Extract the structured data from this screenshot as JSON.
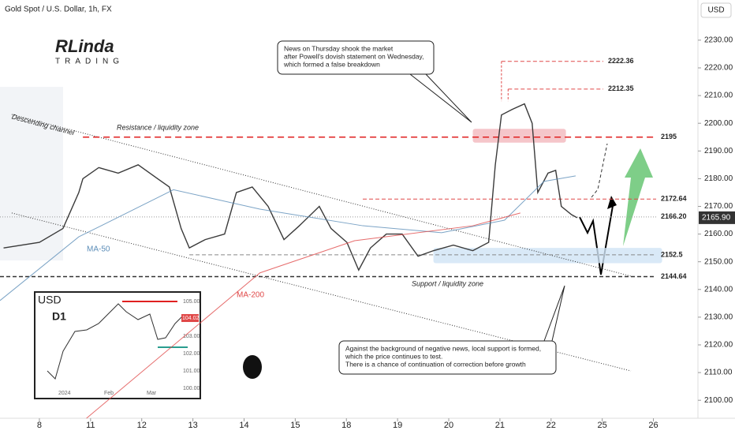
{
  "header": {
    "title": "Gold Spot / U.S. Dollar, 1h, FX",
    "currency": "USD"
  },
  "logo": {
    "name": "RLinda",
    "sub": "TRADING"
  },
  "chart_data": {
    "type": "line",
    "xticks": [
      {
        "value": 0,
        "label": "8"
      },
      {
        "value": 1,
        "label": "11"
      },
      {
        "value": 2,
        "label": "12"
      },
      {
        "value": 3,
        "label": "13"
      },
      {
        "value": 4,
        "label": "14"
      },
      {
        "value": 5,
        "label": "15"
      },
      {
        "value": 6,
        "label": "18"
      },
      {
        "value": 7,
        "label": "19"
      },
      {
        "value": 8,
        "label": "20"
      },
      {
        "value": 9,
        "label": "21"
      },
      {
        "value": 10,
        "label": "22"
      },
      {
        "value": 11,
        "label": "25"
      },
      {
        "value": 12,
        "label": "26"
      }
    ],
    "xlim": [
      -0.77,
      12.87
    ],
    "ylim": [
      2093.5,
      2244.5
    ],
    "yticks": [
      {
        "value": 2100,
        "label": "2100.00"
      },
      {
        "value": 2110,
        "label": "2110.00"
      },
      {
        "value": 2120,
        "label": "2120.00"
      },
      {
        "value": 2130,
        "label": "2130.00"
      },
      {
        "value": 2140,
        "label": "2140.00"
      },
      {
        "value": 2150,
        "label": "2150.00"
      },
      {
        "value": 2160,
        "label": "2160.00"
      },
      {
        "value": 2170,
        "label": "2170.00"
      },
      {
        "value": 2180,
        "label": "2180.00"
      },
      {
        "value": 2190,
        "label": "2190.00"
      },
      {
        "value": 2200,
        "label": "2200.00"
      },
      {
        "value": 2210,
        "label": "2210.00"
      },
      {
        "value": 2220,
        "label": "2220.00"
      },
      {
        "value": 2230,
        "label": "2230.00"
      }
    ],
    "series": [
      {
        "color": "#3a3a3a",
        "x": [
          -0.7,
          0,
          0.46,
          0.77,
          0.85,
          1.16,
          1.54,
          1.93,
          2.31,
          2.54,
          2.77,
          2.93,
          3.24,
          3.62,
          3.85,
          4.16,
          4.47,
          4.78,
          5.08,
          5.47,
          5.7,
          6.01,
          6.24,
          6.47,
          6.78,
          7.09,
          7.4,
          7.7,
          8.09,
          8.47,
          8.78,
          8.91,
          9.03,
          9.24,
          9.48,
          9.63,
          9.74,
          9.94,
          10.09,
          10.2,
          10.4,
          10.51
        ],
        "values": [
          2155,
          2157,
          2162,
          2175,
          2180,
          2184,
          2182,
          2185,
          2180,
          2177,
          2162,
          2155,
          2158,
          2160,
          2175,
          2177,
          2170,
          2158,
          2163,
          2170,
          2162,
          2157,
          2147,
          2155,
          2160,
          2160,
          2152,
          2154,
          2156,
          2154,
          2157,
          2185,
          2203,
          2205,
          2207,
          2200,
          2175,
          2182,
          2183,
          2170,
          2167,
          2165.9
        ]
      },
      {
        "name": "MA-50",
        "color": "#5b8db8",
        "x": [
          -0.77,
          0.77,
          2.62,
          4.31,
          6.32,
          7.86,
          9.09,
          9.86,
          10.48
        ],
        "values": [
          2136,
          2159,
          2176,
          2169,
          2163,
          2160.5,
          2165,
          2179,
          2181
        ]
      },
      {
        "name": "MA-200",
        "color": "#e04848",
        "x": [
          0.92,
          4.31,
          6.16,
          8.47,
          9.4
        ],
        "values": [
          2093.5,
          2146,
          2157.6,
          2163,
          2167.6
        ]
      }
    ],
    "levels": [
      {
        "value": 2222.36,
        "label": "2222.36",
        "from": 9.03,
        "color": "#e04848"
      },
      {
        "value": 2212.35,
        "label": "2212.35",
        "from": 9.16,
        "color": "#e04848"
      },
      {
        "value": 2195,
        "label": "2195",
        "from": 0.85,
        "color": "#e02020"
      },
      {
        "value": 2172.64,
        "label": "2172.64",
        "from": 6.32,
        "color": "#e04848"
      },
      {
        "value": 2166.2,
        "label": "2166.20",
        "from": -0.77,
        "color": "#999999"
      },
      {
        "value": 2152.5,
        "label": "2152.5",
        "from": 2.93,
        "color": "#888888"
      },
      {
        "value": 2144.64,
        "label": "2144.64",
        "from": -0.77,
        "color": "#333333"
      }
    ],
    "zones": [
      {
        "label": "Resistance / liquidity zone",
        "x": [
          8.47,
          10.29
        ],
        "y": [
          2193,
          2198
        ],
        "color": "#f2b8bd"
      },
      {
        "label": "Support / liquidity zone",
        "x": [
          7.7,
          12.17
        ],
        "y": [
          2149.5,
          2155
        ],
        "color": "#cfe3f5"
      }
    ],
    "channel": {
      "label": "Descending channel",
      "upper": {
        "x": [
          -0.54,
          11.56
        ],
        "y": [
          2203.2,
          2144.8
        ]
      },
      "lower": {
        "x": [
          -0.54,
          11.56
        ],
        "y": [
          2167.6,
          2110.6
        ]
      }
    },
    "last_price": {
      "value": 2165.9,
      "label": "2165.90"
    }
  },
  "notes": [
    {
      "lines": [
        "News on Thursday shook the market",
        "after Powell's dovish statement on Wednesday,",
        "which formed a false breakdown"
      ]
    },
    {
      "lines": [
        "Against the background of negative news, local support is formed,",
        "which the price continues to test.",
        "There is a chance of continuation of correction before growth"
      ]
    }
  ],
  "inset": {
    "currency": "USD",
    "timeframe": "D1",
    "yticks": [
      "105.00",
      "103.00",
      "102.00",
      "101.00",
      "100.00"
    ],
    "price": "104.02",
    "xticks": [
      "2024",
      "Feb",
      "Mar"
    ]
  }
}
